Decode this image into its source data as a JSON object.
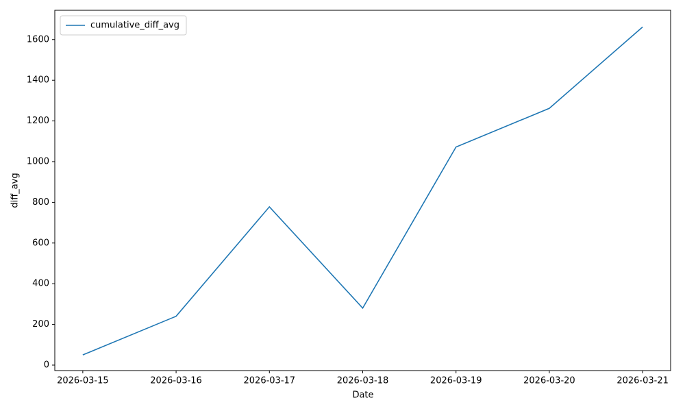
{
  "chart_data": {
    "type": "line",
    "x_label": "Date",
    "y_label": "diff_avg",
    "categories": [
      "2026-03-15",
      "2026-03-16",
      "2026-03-17",
      "2026-03-18",
      "2026-03-19",
      "2026-03-20",
      "2026-03-21"
    ],
    "series": [
      {
        "name": "cumulative_diff_avg",
        "color": "#1f77b4",
        "values": [
          50,
          240,
          778,
          280,
          1072,
          1262,
          1662
        ]
      }
    ],
    "ylim": [
      -27,
      1744
    ],
    "yticks": [
      0,
      200,
      400,
      600,
      800,
      1000,
      1200,
      1400,
      1600
    ],
    "legend": "upper left",
    "grid": false
  }
}
